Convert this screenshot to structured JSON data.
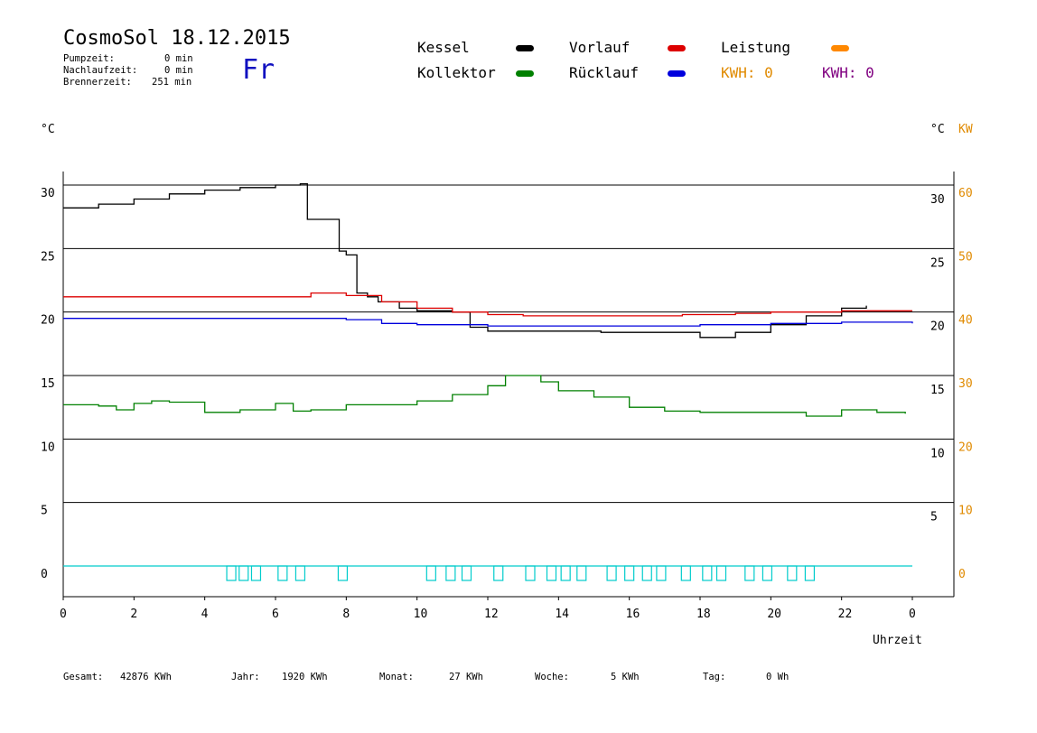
{
  "header": {
    "title": "CosmoSol 18.12.2015",
    "day": "Fr",
    "pumpzeit_label": "Pumpzeit:",
    "pumpzeit_value": "0 min",
    "nachlauf_label": "Nachlaufzeit:",
    "nachlauf_value": "0 min",
    "brenner_label": "Brennerzeit:",
    "brenner_value": "251 min"
  },
  "legend": {
    "kessel": "Kessel",
    "kollektor": "Kollektor",
    "vorlauf": "Vorlauf",
    "ruecklauf": "Rücklauf",
    "leistung": "Leistung",
    "kwh1": "KWH: 0",
    "kwh2": "KWH: 0"
  },
  "footer": {
    "gesamt_label": "Gesamt:",
    "gesamt_value": "42876 KWh",
    "jahr_label": "Jahr:",
    "jahr_value": "1920 KWh",
    "monat_label": "Monat:",
    "monat_value": "27 KWh",
    "woche_label": "Woche:",
    "woche_value": "5 KWh",
    "tag_label": "Tag:",
    "tag_value": "0 Wh"
  },
  "colors": {
    "kessel": "#000000",
    "kollektor": "#008000",
    "vorlauf": "#dd0000",
    "ruecklauf": "#0000dd",
    "leistung": "#ff8800",
    "kwh2": "#800080",
    "pump": "#00cccc",
    "orange_text": "#e08a00"
  },
  "chart_data": {
    "type": "line",
    "xlabel": "Uhrzeit",
    "ylabel_left": "°C",
    "ylabel_right": "°C",
    "ylabel_right2": "KW",
    "xlim": [
      0,
      24
    ],
    "ylim": [
      0,
      30
    ],
    "y2lim": [
      0,
      60
    ],
    "x_ticks": [
      "0",
      "2",
      "4",
      "6",
      "8",
      "10",
      "12",
      "14",
      "16",
      "18",
      "20",
      "22",
      "0"
    ],
    "y_ticks": [
      "0",
      "5",
      "10",
      "15",
      "20",
      "25",
      "30"
    ],
    "y2_ticks": [
      "0",
      "10",
      "20",
      "30",
      "40",
      "50",
      "60"
    ],
    "grid": true,
    "series": [
      {
        "name": "Kessel",
        "color": "#000000",
        "points": [
          [
            0,
            28.2
          ],
          [
            1,
            28.5
          ],
          [
            2,
            28.9
          ],
          [
            3,
            29.3
          ],
          [
            4,
            29.6
          ],
          [
            5,
            29.8
          ],
          [
            6,
            30
          ],
          [
            6.7,
            30.1
          ],
          [
            6.9,
            27.3
          ],
          [
            7.6,
            27.3
          ],
          [
            7.8,
            24.8
          ],
          [
            8.0,
            24.5
          ],
          [
            8.3,
            21.5
          ],
          [
            8.6,
            21.2
          ],
          [
            8.9,
            20.8
          ],
          [
            9.5,
            20.3
          ],
          [
            10,
            20.1
          ],
          [
            11,
            20
          ],
          [
            11.5,
            18.8
          ],
          [
            12,
            18.5
          ],
          [
            13,
            18.5
          ],
          [
            15,
            18.5
          ],
          [
            15.2,
            18.4
          ],
          [
            17.5,
            18.4
          ],
          [
            18,
            18.0
          ],
          [
            18.3,
            18.0
          ],
          [
            19,
            18.4
          ],
          [
            20,
            19.0
          ],
          [
            21,
            19.7
          ],
          [
            22,
            20.3
          ],
          [
            22.7,
            20.5
          ]
        ]
      },
      {
        "name": "Vorlauf",
        "color": "#dd0000",
        "points": [
          [
            0,
            21.2
          ],
          [
            3,
            21.2
          ],
          [
            5.5,
            21.2
          ],
          [
            7,
            21.5
          ],
          [
            8,
            21.3
          ],
          [
            9,
            20.8
          ],
          [
            10,
            20.3
          ],
          [
            11,
            20.0
          ],
          [
            12,
            19.8
          ],
          [
            13,
            19.7
          ],
          [
            15,
            19.7
          ],
          [
            17.5,
            19.8
          ],
          [
            18,
            19.8
          ],
          [
            19,
            19.9
          ],
          [
            20,
            20.0
          ],
          [
            22,
            20.1
          ],
          [
            24,
            20.1
          ]
        ]
      },
      {
        "name": "Rücklauf",
        "color": "#0000dd",
        "points": [
          [
            0,
            19.5
          ],
          [
            3,
            19.5
          ],
          [
            6,
            19.5
          ],
          [
            8,
            19.4
          ],
          [
            9,
            19.1
          ],
          [
            10,
            19.0
          ],
          [
            12,
            18.9
          ],
          [
            15,
            18.9
          ],
          [
            18,
            19.0
          ],
          [
            20,
            19.1
          ],
          [
            22,
            19.2
          ],
          [
            24,
            19.1
          ]
        ]
      },
      {
        "name": "Kollektor",
        "color": "#008000",
        "points": [
          [
            0,
            12.7
          ],
          [
            1,
            12.6
          ],
          [
            1.5,
            12.3
          ],
          [
            2,
            12.8
          ],
          [
            2.5,
            13.0
          ],
          [
            3,
            12.9
          ],
          [
            3.5,
            12.9
          ],
          [
            4,
            12.1
          ],
          [
            5,
            12.3
          ],
          [
            6,
            12.8
          ],
          [
            6.5,
            12.2
          ],
          [
            7,
            12.3
          ],
          [
            8,
            12.7
          ],
          [
            9,
            12.7
          ],
          [
            10,
            13.0
          ],
          [
            11,
            13.5
          ],
          [
            12,
            14.2
          ],
          [
            12.5,
            15.0
          ],
          [
            13,
            15.0
          ],
          [
            13.5,
            14.5
          ],
          [
            14,
            13.8
          ],
          [
            15,
            13.3
          ],
          [
            16,
            12.5
          ],
          [
            17,
            12.2
          ],
          [
            18,
            12.1
          ],
          [
            19,
            12.1
          ],
          [
            20,
            12.1
          ],
          [
            21,
            11.8
          ],
          [
            22,
            12.3
          ],
          [
            23,
            12.1
          ],
          [
            23.8,
            12.0
          ]
        ]
      }
    ],
    "pump_pulses": [
      4.75,
      5.1,
      5.45,
      6.2,
      6.7,
      7.9,
      10.4,
      10.95,
      11.4,
      12.3,
      13.2,
      13.8,
      14.2,
      14.65,
      15.5,
      16.0,
      16.5,
      16.9,
      17.6,
      18.2,
      18.6,
      19.4,
      19.9,
      20.6,
      21.1
    ]
  }
}
